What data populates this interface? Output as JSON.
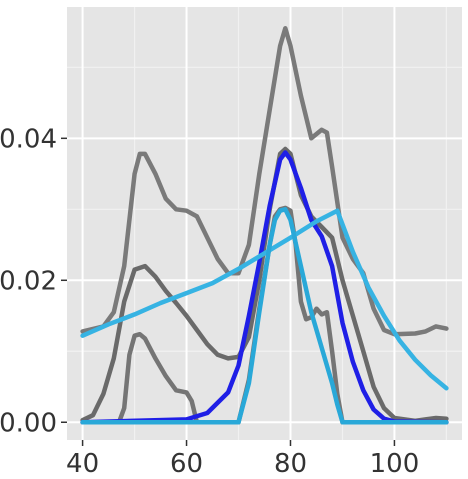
{
  "chart_data": {
    "type": "line",
    "title": "",
    "xlabel": "",
    "ylabel": "",
    "xlim": [
      37,
      113
    ],
    "ylim": [
      -0.0025,
      0.0585
    ],
    "x_ticks": [
      40,
      60,
      80,
      100
    ],
    "x_tick_labels": [
      "40",
      "60",
      "80",
      "100"
    ],
    "y_ticks": [
      0.0,
      0.02,
      0.04
    ],
    "y_tick_labels": [
      "0.00",
      "0.02",
      "0.04"
    ],
    "grid": true,
    "legend": "none",
    "colors": {
      "panel": "#e5e5e5",
      "grid_major": "#ffffff",
      "grid_minor": "#f1f1f1",
      "axis_text": "#333333"
    },
    "series": [
      {
        "color": "#7a7a7a",
        "values": [
          [
            40,
            0.0128
          ],
          [
            44,
            0.0135
          ],
          [
            46,
            0.0155
          ],
          [
            48,
            0.022
          ],
          [
            50,
            0.035
          ],
          [
            51,
            0.0378
          ],
          [
            52,
            0.0378
          ],
          [
            54,
            0.035
          ],
          [
            56,
            0.0315
          ],
          [
            58,
            0.03
          ],
          [
            60,
            0.0298
          ],
          [
            62,
            0.029
          ],
          [
            64,
            0.026
          ],
          [
            66,
            0.023
          ],
          [
            68,
            0.021
          ],
          [
            70,
            0.021
          ],
          [
            72,
            0.025
          ],
          [
            74,
            0.035
          ],
          [
            76,
            0.044
          ],
          [
            78,
            0.053
          ],
          [
            79,
            0.0555
          ],
          [
            80,
            0.053
          ],
          [
            82,
            0.046
          ],
          [
            84,
            0.04
          ],
          [
            86,
            0.0412
          ],
          [
            87,
            0.0408
          ],
          [
            88,
            0.036
          ],
          [
            90,
            0.026
          ],
          [
            92,
            0.023
          ],
          [
            94,
            0.021
          ],
          [
            96,
            0.016
          ],
          [
            98,
            0.013
          ],
          [
            100,
            0.0124
          ],
          [
            104,
            0.0125
          ],
          [
            106,
            0.0128
          ],
          [
            108,
            0.0135
          ],
          [
            110,
            0.0132
          ]
        ]
      },
      {
        "color": "#6a6a6a",
        "values": [
          [
            40,
            0.0003
          ],
          [
            42,
            0.001
          ],
          [
            44,
            0.004
          ],
          [
            46,
            0.009
          ],
          [
            48,
            0.017
          ],
          [
            50,
            0.0215
          ],
          [
            52,
            0.022
          ],
          [
            54,
            0.0205
          ],
          [
            56,
            0.0185
          ],
          [
            58,
            0.0168
          ],
          [
            60,
            0.015
          ],
          [
            62,
            0.013
          ],
          [
            64,
            0.011
          ],
          [
            66,
            0.0095
          ],
          [
            68,
            0.009
          ],
          [
            70,
            0.0092
          ],
          [
            72,
            0.012
          ],
          [
            74,
            0.02
          ],
          [
            76,
            0.03
          ],
          [
            78,
            0.0378
          ],
          [
            79,
            0.0385
          ],
          [
            80,
            0.0378
          ],
          [
            82,
            0.032
          ],
          [
            84,
            0.029
          ],
          [
            86,
            0.0275
          ],
          [
            88,
            0.026
          ],
          [
            90,
            0.02
          ],
          [
            92,
            0.015
          ],
          [
            94,
            0.01
          ],
          [
            96,
            0.005
          ],
          [
            98,
            0.002
          ],
          [
            100,
            0.0006
          ],
          [
            104,
            0.0002
          ],
          [
            106,
            0.0004
          ],
          [
            108,
            0.0006
          ],
          [
            110,
            0.0005
          ]
        ]
      },
      {
        "color": "#757575",
        "values": [
          [
            40,
            0.0
          ],
          [
            47,
            0.0
          ],
          [
            48,
            0.002
          ],
          [
            49,
            0.0095
          ],
          [
            50,
            0.0122
          ],
          [
            51,
            0.0124
          ],
          [
            52,
            0.0118
          ],
          [
            54,
            0.009
          ],
          [
            56,
            0.0065
          ],
          [
            58,
            0.0045
          ],
          [
            60,
            0.0042
          ],
          [
            61,
            0.003
          ],
          [
            62,
            0.0
          ],
          [
            70,
            0.0
          ],
          [
            72,
            0.006
          ],
          [
            74,
            0.016
          ],
          [
            76,
            0.025
          ],
          [
            77,
            0.029
          ],
          [
            78,
            0.03
          ],
          [
            79,
            0.0302
          ],
          [
            80,
            0.0298
          ],
          [
            81,
            0.025
          ],
          [
            82,
            0.017
          ],
          [
            83,
            0.0145
          ],
          [
            84,
            0.0148
          ],
          [
            85,
            0.016
          ],
          [
            86,
            0.0152
          ],
          [
            87,
            0.0155
          ],
          [
            88,
            0.01
          ],
          [
            89,
            0.004
          ],
          [
            90,
            0.0
          ],
          [
            110,
            0.0
          ]
        ]
      },
      {
        "color": "#1f1fe6",
        "values": [
          [
            40,
            0.0
          ],
          [
            60,
            0.0004
          ],
          [
            64,
            0.0013
          ],
          [
            68,
            0.0042
          ],
          [
            70,
            0.008
          ],
          [
            72,
            0.015
          ],
          [
            74,
            0.0225
          ],
          [
            76,
            0.0305
          ],
          [
            78,
            0.037
          ],
          [
            79,
            0.038
          ],
          [
            80,
            0.037
          ],
          [
            82,
            0.033
          ],
          [
            84,
            0.0285
          ],
          [
            86,
            0.0262
          ],
          [
            88,
            0.022
          ],
          [
            90,
            0.014
          ],
          [
            92,
            0.0085
          ],
          [
            94,
            0.0045
          ],
          [
            96,
            0.0018
          ],
          [
            98,
            0.0005
          ],
          [
            100,
            0.0001
          ],
          [
            110,
            0.0
          ]
        ]
      },
      {
        "color": "#36b3e3",
        "values": [
          [
            40,
            0.0122
          ],
          [
            45,
            0.0138
          ],
          [
            50,
            0.0152
          ],
          [
            55,
            0.0168
          ],
          [
            60,
            0.0182
          ],
          [
            65,
            0.0196
          ],
          [
            70,
            0.0216
          ],
          [
            75,
            0.0238
          ],
          [
            80,
            0.026
          ],
          [
            85,
            0.0283
          ],
          [
            89,
            0.0298
          ],
          [
            92,
            0.024
          ],
          [
            95,
            0.019
          ],
          [
            98,
            0.015
          ],
          [
            101,
            0.0115
          ],
          [
            104,
            0.0088
          ],
          [
            107,
            0.0066
          ],
          [
            110,
            0.0048
          ]
        ]
      },
      {
        "color": "#29a8d8",
        "values": [
          [
            40,
            0.0
          ],
          [
            70,
            0.0
          ],
          [
            72,
            0.0055
          ],
          [
            74,
            0.0155
          ],
          [
            76,
            0.025
          ],
          [
            77,
            0.0285
          ],
          [
            78,
            0.0298
          ],
          [
            79,
            0.03
          ],
          [
            80,
            0.0285
          ],
          [
            82,
            0.022
          ],
          [
            84,
            0.0155
          ],
          [
            86,
            0.0105
          ],
          [
            88,
            0.0055
          ],
          [
            89,
            0.0025
          ],
          [
            90,
            0.0
          ],
          [
            110,
            0.0
          ]
        ]
      }
    ]
  }
}
